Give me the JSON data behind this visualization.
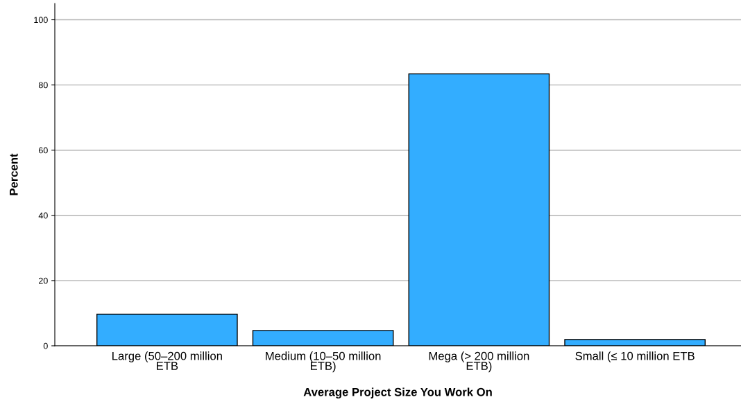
{
  "chart_data": {
    "type": "bar",
    "xlabel": "Average Project Size You Work On",
    "ylabel": "Percent",
    "categories": [
      "Large (50–200 million\nETB",
      "Medium (10–50 million\nETB)",
      "Mega (> 200 million\nETB)",
      "Small (≤ 10 million ETB"
    ],
    "values": [
      9.7,
      4.7,
      83.4,
      1.9
    ],
    "color": "#33adff",
    "ylim": [
      0,
      105
    ],
    "yticks": [
      0,
      20,
      40,
      60,
      80,
      100
    ],
    "grid": "y"
  }
}
